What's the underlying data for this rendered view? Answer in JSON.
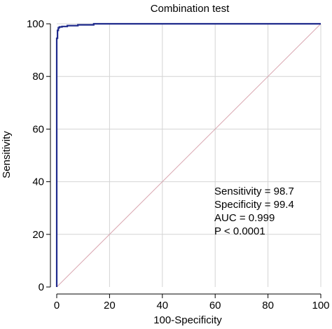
{
  "chart_data": {
    "type": "line",
    "title": "Combination test",
    "xlabel": "100-Specificity",
    "ylabel": "Sensitivity",
    "xlim": [
      0,
      100
    ],
    "ylim": [
      0,
      100
    ],
    "x_ticks": [
      0,
      20,
      40,
      60,
      80,
      100
    ],
    "y_ticks": [
      0,
      20,
      40,
      60,
      80,
      100
    ],
    "grid": true,
    "series": [
      {
        "color": "#1f2a8c",
        "x": [
          0,
          0,
          0.3,
          0.3,
          0.6,
          0.6,
          1.0,
          1.0,
          2.0,
          2.0,
          4.0,
          4.0,
          8.0,
          8.0,
          14.0,
          14.0,
          100
        ],
        "y": [
          0,
          94.5,
          94.5,
          97.5,
          97.5,
          98.5,
          98.5,
          98.8,
          98.8,
          99.0,
          99.0,
          99.3,
          99.3,
          99.6,
          99.6,
          100,
          100
        ]
      },
      {
        "style": "reference",
        "color": "#d9a6b0",
        "x": [
          0,
          100
        ],
        "y": [
          0,
          100
        ]
      }
    ],
    "annotations": [
      "Sensitivity = 98.7",
      "Specificity = 99.4",
      "AUC = 0.999",
      "P < 0.0001"
    ]
  }
}
